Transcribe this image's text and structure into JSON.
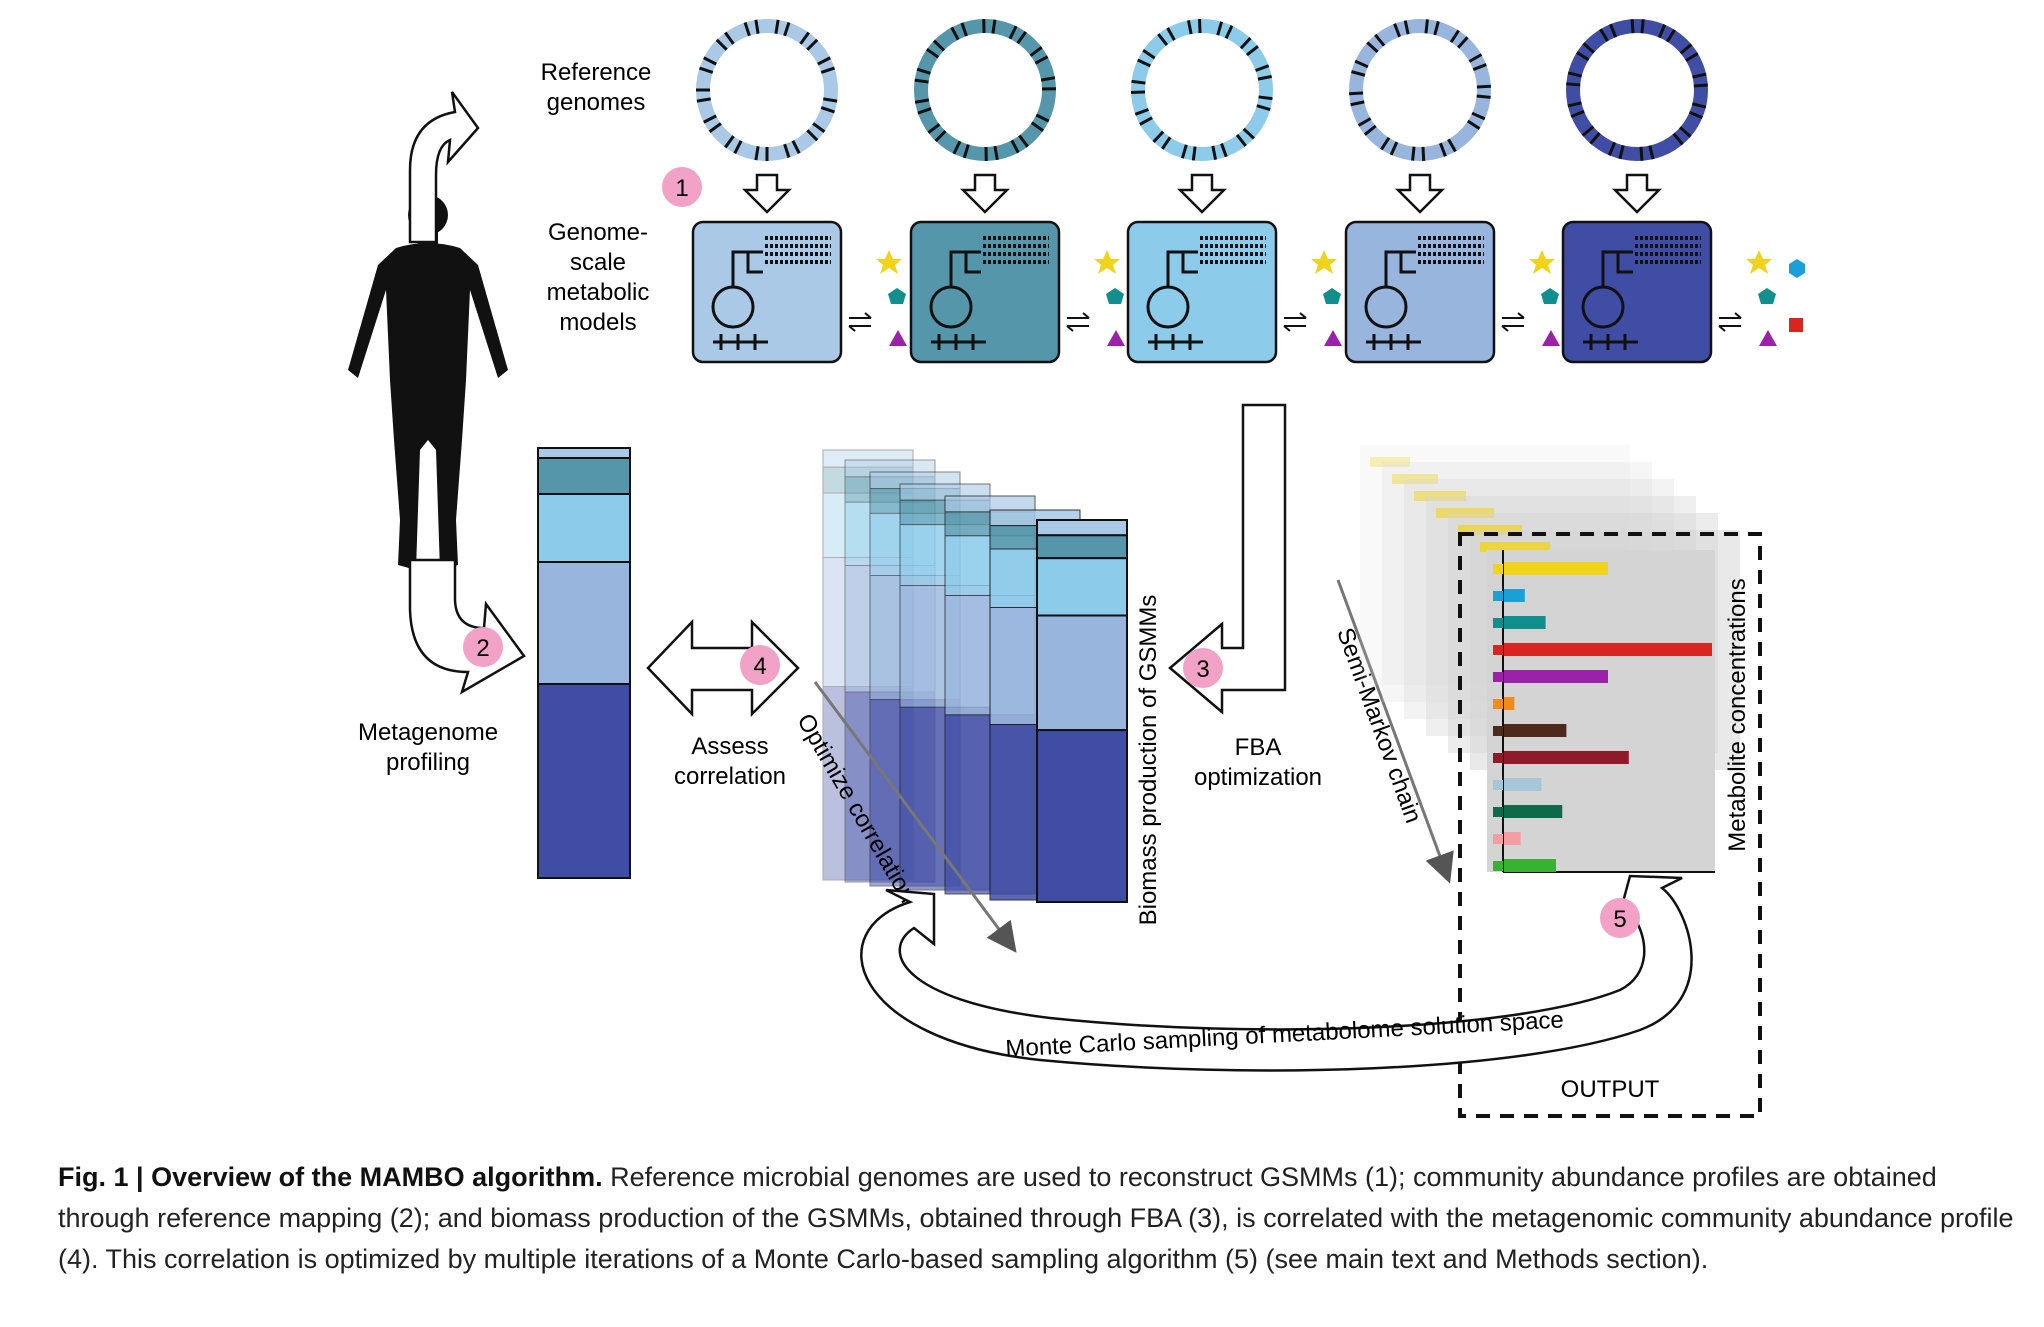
{
  "labels": {
    "reference_genomes": "Reference genomes",
    "gsmm": "Genome-scale metabolic models",
    "metagenome_profiling": "Metagenome profiling",
    "assess_correlation": "Assess correlation",
    "fba_optimization": "FBA optimization",
    "optimize_correlation": "Optimize correlation",
    "biomass_production": "Biomass production of GSMMs",
    "semi_markov": "Semi-Markov chain",
    "metabolite_concentrations": "Metabolite concentrations",
    "monte_carlo": "Monte Carlo sampling of metabolome solution space",
    "output": "OUTPUT"
  },
  "steps": [
    "1",
    "2",
    "3",
    "4",
    "5"
  ],
  "caption": {
    "bold": "Fig. 1 | Overview of the MAMBO algorithm.",
    "text": "Reference microbial genomes are used to reconstruct GSMMs (1); community abundance profiles are obtained through reference mapping (2); and biomass production of the GSMMs, obtained through FBA (3), is correlated with the metagenomic community abundance profile (4). This correlation is optimized by multiple iterations of a Monte Carlo-based sampling algorithm (5) (see main text and Methods section)."
  },
  "colors": {
    "org1": "#a9c9e7",
    "org2": "#5596ab",
    "org3": "#8ccbea",
    "org4": "#98b5dd",
    "org5": "#3f4da5",
    "step_badge": "#f2a2c6",
    "panel_bg": "#d4d4d4"
  },
  "metabolite_bars": [
    0.5,
    0.1,
    0.2,
    1.0,
    0.5,
    0.05,
    0.3,
    0.6,
    0.18,
    0.28,
    0.08,
    0.25
  ]
}
